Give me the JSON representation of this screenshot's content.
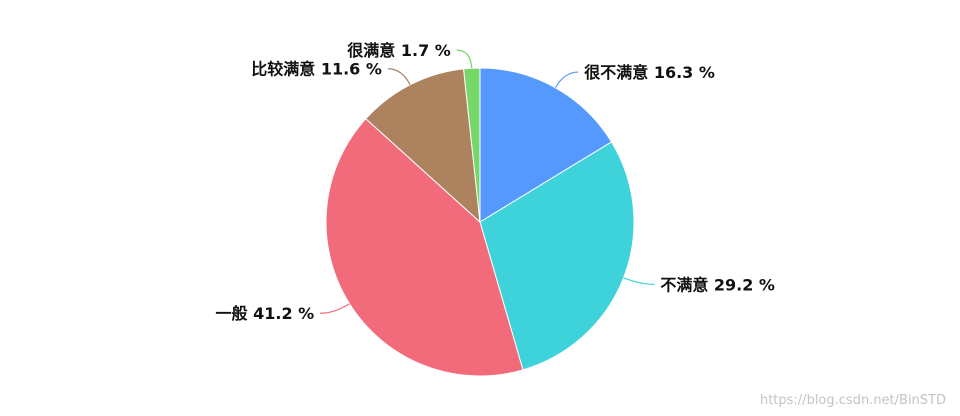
{
  "chart_data": {
    "type": "pie",
    "start": "top",
    "direction": "clockwise",
    "slices": [
      {
        "label": "很不满意",
        "value": 16.3,
        "display": "很不满意 16.3 %",
        "color": "#5599ff"
      },
      {
        "label": "不满意",
        "value": 29.2,
        "display": "不满意 29.2 %",
        "color": "#3ed3da"
      },
      {
        "label": "一般",
        "value": 41.2,
        "display": "一般 41.2 %",
        "color": "#f16b7b"
      },
      {
        "label": "比较满意",
        "value": 11.6,
        "display": "比较满意 11.6 %",
        "color": "#ac825f"
      },
      {
        "label": "很满意",
        "value": 1.7,
        "display": "很满意 1.7 %",
        "color": "#77d86a"
      }
    ]
  },
  "watermark": "https://blog.csdn.net/BinSTD"
}
